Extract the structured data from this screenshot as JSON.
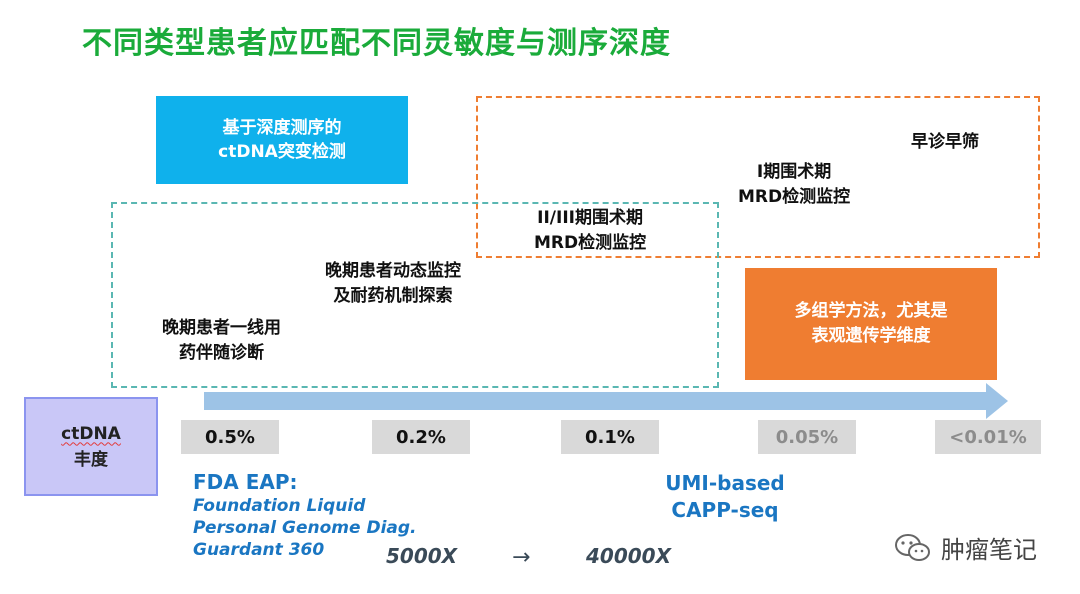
{
  "title": "不同类型患者应匹配不同灵敏度与测序深度",
  "blue_box": {
    "line1": "基于深度测序的",
    "line2": "ctDNA突变检测"
  },
  "orange_box": {
    "line1": "多组学方法，尤其是",
    "line2": "表观遗传学维度"
  },
  "labels": {
    "early_screening": "早诊早筛",
    "stage1": {
      "line1": "I期围术期",
      "line2": "MRD检测监控"
    },
    "stage23": {
      "line1": "II/III期围术期",
      "line2": "MRD检测监控"
    },
    "advanced_monitor": {
      "line1": "晚期患者动态监控",
      "line2": "及耐药机制探索"
    },
    "advanced_firstline": {
      "line1": "晚期患者一线用",
      "line2": "药伴随诊断"
    }
  },
  "ctdna_box": {
    "word": "ctDNA",
    "line2": "丰度"
  },
  "abundance": [
    "0.5%",
    "0.2%",
    "0.1%",
    "0.05%",
    "<0.01%"
  ],
  "abundance_colors": [
    "#111111",
    "#111111",
    "#111111",
    "#8c8c8c",
    "#8c8c8c"
  ],
  "fda": {
    "title": "FDA EAP:",
    "items": [
      "Foundation Liquid",
      "Personal Genome Diag.",
      "Guardant 360"
    ]
  },
  "umi": {
    "line1": "UMI-based",
    "line2": "CAPP-seq"
  },
  "depth": {
    "from": "5000X",
    "arrow": "→",
    "to": "40000X"
  },
  "watermark": "肿瘤笔记",
  "colors": {
    "title_green": "#1aab3a",
    "blue_box": "#0fb1ec",
    "orange": "#ef7d31",
    "teal_dash": "#5ab7b2",
    "arrow_blue": "#9dc3e6",
    "link_blue": "#1a76c2"
  }
}
